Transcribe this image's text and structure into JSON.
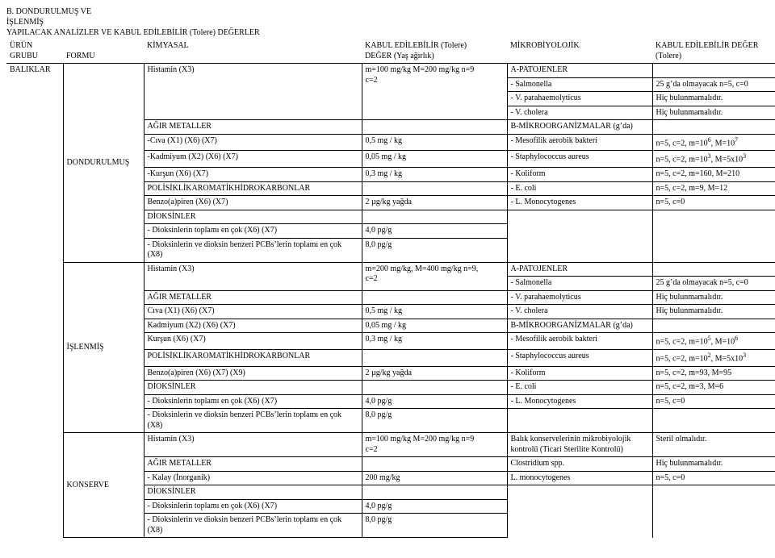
{
  "titleBlock": {
    "line1": "B. DONDURULMUŞ VE",
    "line2": "İŞLENMİŞ",
    "line3": "YAPILACAK ANALİZLER VE KABUL EDİLEBİLİR (Tolere) DEĞERLER"
  },
  "headers": {
    "col1a": "ÜRÜN",
    "col1b": "GRUBU",
    "col2": "FORMU",
    "col3": "KİMYASAL",
    "col4a": "KABUL EDİLEBİLİR (Tolere)",
    "col4b": "DEĞER (Yaş ağırlık)",
    "col5": "MİKROBİYOLOJİK",
    "col6a": "KABUL EDİLEBİLİR DEĞER",
    "col6b": "(Tolere)"
  },
  "productGroup": "BALIKLAR",
  "form1": "DONDURULMUŞ",
  "form2": "İŞLENMİŞ",
  "form3": "KONSERVE",
  "s1": {
    "r1c3": "Histamin (X3)",
    "r1c4a": "m=100 mg/kg M=200 mg/kg   n=9",
    "r1c4b": "c=2",
    "r1c5": "A-PATOJENLER",
    "r2c5": "- Salmonella",
    "r2c6": "25 g’da olmayacak n=5, c=0",
    "r3c5": "- V. parahaemolyticus",
    "r3c6": "Hiç bulunmamalıdır.",
    "r4c5": "- V. cholera",
    "r4c6": "Hiç bulunmamalıdır.",
    "r5c3": "AĞIR METALLER",
    "r5c5": "B-MİKROORGANİZMALAR (g’da)",
    "r6c3": "-Cıva (X1) (X6) (X7)",
    "r6c4": "0,5 mg / kg",
    "r6c5": "- Mesofilik aerobik bakteri",
    "r6c6": "n=5, c=2, m=10⁶, M=10⁷",
    "r7c3": "-Kadmiyum (X2) (X6) (X7)",
    "r7c4": "0,05 mg / kg",
    "r7c5": "- Staphylococcus aureus",
    "r7c6": "n=5, c=2, m=10³, M=5x10³",
    "r8c3": "-Kurşun (X6) (X7)",
    "r8c4": "0,3 mg / kg",
    "r8c5": "- Koliform",
    "r8c6": "n=5, c=2, m=160, M=210",
    "r9c3": "POLİSİKLİKAROMATİKHİDROKARBONLAR",
    "r9c5": "- E. coli",
    "r9c6": "n=5, c=2, m=9, M=12",
    "r10c3": "Benzo(a)piren (X6) (X7)",
    "r10c4": "2 µg/kg yağda",
    "r10c5": "- L. Monocytogenes",
    "r10c6": "n=5, c=0",
    "r11c3": "DİOKSİNLER",
    "r12c3": "- Dioksinlerin toplamı en çok (X6) (X7)",
    "r12c4": "4,0 pg/g",
    "r13c3": "- Dioksinlerin ve dioksin benzeri PCBs’lerin toplamı en çok (X8)",
    "r13c4": "8,0 pg/g"
  },
  "s2": {
    "r1c3": "Histamin (X3)",
    "r1c4a": "m=200 mg/kg, M=400 mg/kg   n=9,",
    "r1c4b": "c=2",
    "r1c5": "A-PATOJENLER",
    "r2c5": "- Salmonella",
    "r2c6": "25 g’da olmayacak n=5, c=0",
    "r3c3": "AĞIR METALLER",
    "r3c5": "- V. parahaemolyticus",
    "r3c6": "Hiç bulunmamalıdır.",
    "r4c3": "Cıva (X1) (X6) (X7)",
    "r4c4": "0,5 mg / kg",
    "r4c5": "- V. cholera",
    "r4c6": "Hiç bulunmamalıdır.",
    "r5c3": "Kadmiyum (X2) (X6) (X7)",
    "r5c4": "0,05 mg / kg",
    "r5c5": "B-MİKROORGANİZMALAR (g’da)",
    "r6c3": "Kurşun (X6) (X7)",
    "r6c4": "0,3 mg / kg",
    "r6c5": "- Mesofilik aerobik bakteri",
    "r6c6": "n=5, c=2, m=10⁵, M=10⁶",
    "r7c3": "POLİSİKLİKAROMATİKHİDROKARBONLAR",
    "r7c5": "- Staphylococcus aureus",
    "r7c6": "n=5, c=2, m=10², M=5x10³",
    "r8c3": "Benzo(a)piren (X6) (X7) (X9)",
    "r8c4": "2 µg/kg yağda",
    "r8c5": "- Koliform",
    "r8c6": "n=5, c=2, m=93, M=95",
    "r9c3": "DİOKSİNLER",
    "r9c5": "- E. coli",
    "r9c6": "n=5, c=2, m=3, M=6",
    "r10c3": "- Dioksinlerin toplamı en çok (X6) (X7)",
    "r10c4": "4,0 pg/g",
    "r10c5": "- L. Monocytogenes",
    "r10c6": "n=5, c=0",
    "r11c3": "- Dioksinlerin ve dioksin benzeri PCBs’lerin toplamı en çok (X8)",
    "r11c4": "8,0 pg/g"
  },
  "s3": {
    "r1c3": "Histamin (X3)",
    "r1c4a": "m=100 mg/kg M=200 mg/kg   n=9",
    "r1c4b": "c=2",
    "r1c5a": "Balık konservelerinin mikrobiyolojik",
    "r1c5b": "kontrolü (Ticari Sterilite Kontrolü)",
    "r1c6": "Steril olmalıdır.",
    "r2c3": "AĞIR METALLER",
    "r2c5": "Clostridium spp.",
    "r2c6": "Hiç bulunmamalıdır.",
    "r3c3": "- Kalay (İnorganik)",
    "r3c4": "200 mg/kg",
    "r3c5": "L. monocytogenes",
    "r3c6": "n=5, c=0",
    "r4c3": "DİOKSİNLER",
    "r5c3": "- Dioksinlerin toplamı en çok (X6) (X7)",
    "r5c4": "4,0 pg/g",
    "r6c3": "- Dioksinlerin ve dioksin benzeri PCBs’lerin toplamı en çok (X8)",
    "r6c4": "8,0 pg/g"
  }
}
